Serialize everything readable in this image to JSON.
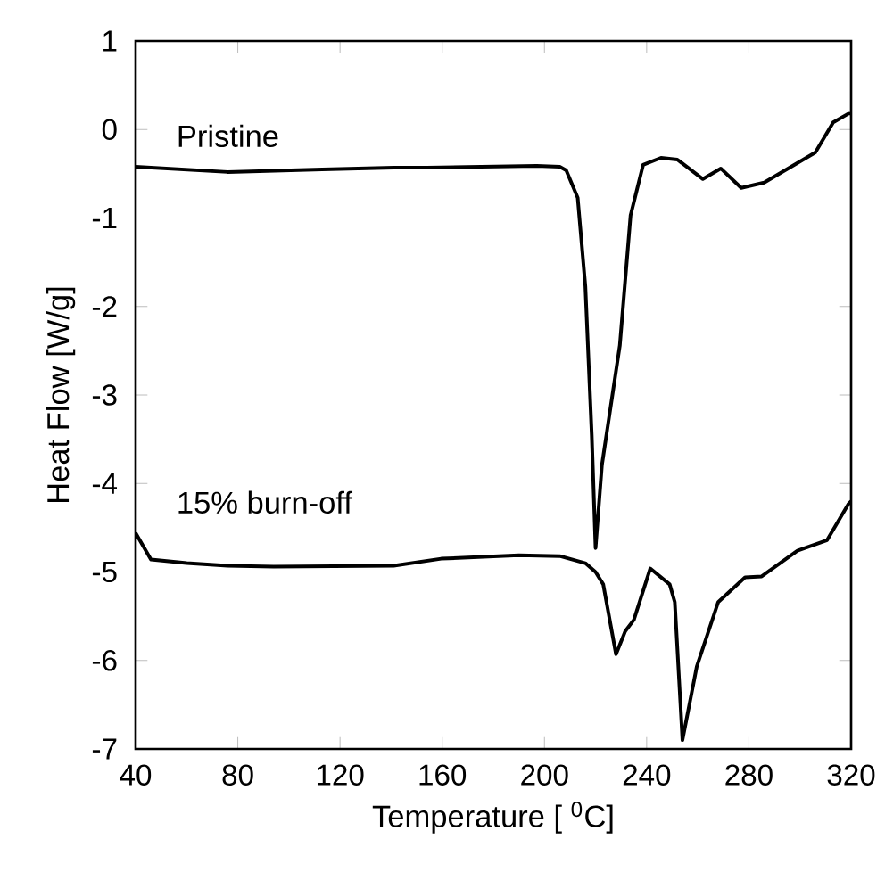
{
  "chart_data": {
    "type": "line",
    "xlabel": "Temperature [ $^{0}$C]",
    "ylabel": "Heat Flow [W/g]",
    "xlim": [
      40,
      320
    ],
    "ylim": [
      -7,
      1
    ],
    "xticks": [
      40,
      80,
      120,
      160,
      200,
      240,
      280,
      320
    ],
    "yticks": [
      -7,
      -6,
      -5,
      -4,
      -3,
      -2,
      -1,
      0,
      1
    ],
    "grid": false,
    "legend": false,
    "marker": "none",
    "line_style": "solid",
    "series": [
      {
        "name": "Pristine",
        "color": "#000000",
        "x": [
          40,
          76,
          113,
          141,
          154,
          197,
          206,
          208.5,
          213,
          216,
          218.5,
          220,
          222.5,
          229.5,
          233.7,
          238.6,
          245.6,
          252,
          262,
          269,
          277,
          286,
          306,
          313,
          319,
          320
        ],
        "values": [
          -0.42,
          -0.48,
          -0.45,
          -0.43,
          -0.43,
          -0.41,
          -0.42,
          -0.46,
          -0.77,
          -1.77,
          -3.45,
          -4.73,
          -3.79,
          -2.44,
          -0.97,
          -0.4,
          -0.32,
          -0.34,
          -0.56,
          -0.44,
          -0.66,
          -0.6,
          -0.26,
          0.08,
          0.18,
          0.18
        ]
      },
      {
        "name": "15% burn-off",
        "color": "#000000",
        "x": [
          40,
          46,
          60,
          76,
          94,
          141,
          159.6,
          190,
          206,
          216,
          220,
          223,
          228,
          231.6,
          235,
          241.4,
          249,
          251,
          254,
          259.6,
          268,
          278.5,
          285,
          299,
          310.6,
          319,
          320
        ],
        "values": [
          -4.56,
          -4.86,
          -4.9,
          -4.93,
          -4.94,
          -4.93,
          -4.85,
          -4.81,
          -4.82,
          -4.9,
          -5.0,
          -5.14,
          -5.93,
          -5.67,
          -5.54,
          -4.96,
          -5.14,
          -5.34,
          -6.9,
          -6.07,
          -5.34,
          -5.06,
          -5.05,
          -4.76,
          -4.64,
          -4.23,
          -4.2
        ]
      }
    ]
  }
}
